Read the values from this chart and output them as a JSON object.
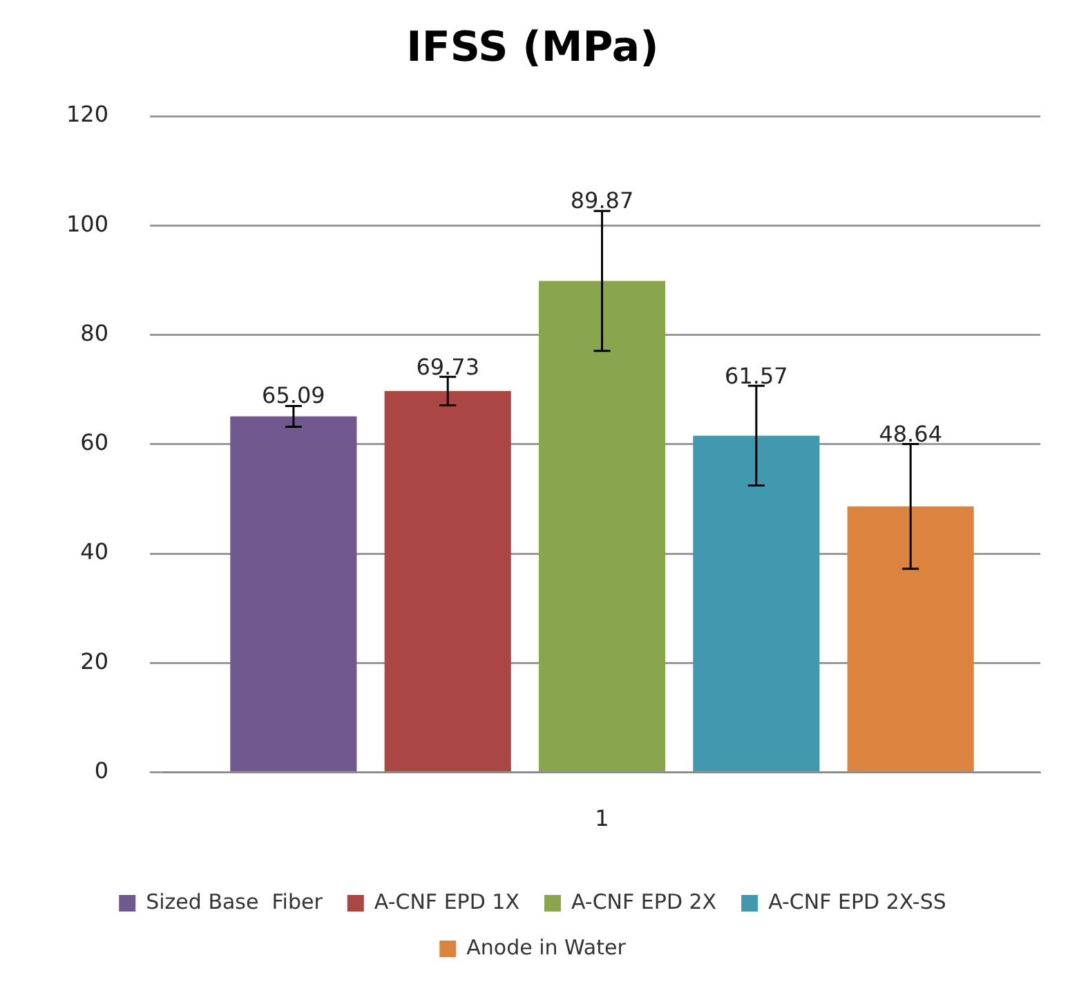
{
  "chart_data": {
    "type": "bar",
    "title": "IFSS (MPa)",
    "categories": [
      "1"
    ],
    "series": [
      {
        "name": "Sized Base  Fiber",
        "color": "#71588f",
        "values": [
          65.09
        ],
        "errors": [
          1.9
        ]
      },
      {
        "name": "A-CNF EPD 1X",
        "color": "#aa4643",
        "values": [
          69.73
        ],
        "errors": [
          2.6
        ]
      },
      {
        "name": "A-CNF EPD 2X",
        "color": "#89a54e",
        "values": [
          89.87
        ],
        "errors": [
          12.8
        ]
      },
      {
        "name": "A-CNF EPD 2X-SS",
        "color": "#4198af",
        "values": [
          61.57
        ],
        "errors": [
          9.1
        ]
      },
      {
        "name": "Anode in Water",
        "color": "#db843d",
        "values": [
          48.64
        ],
        "errors": [
          11.4
        ]
      }
    ],
    "ylim": [
      0,
      120
    ],
    "yticks": [
      0,
      20,
      40,
      60,
      80,
      100,
      120
    ],
    "grid": "y",
    "legend": "bottom",
    "data_labels": true
  }
}
